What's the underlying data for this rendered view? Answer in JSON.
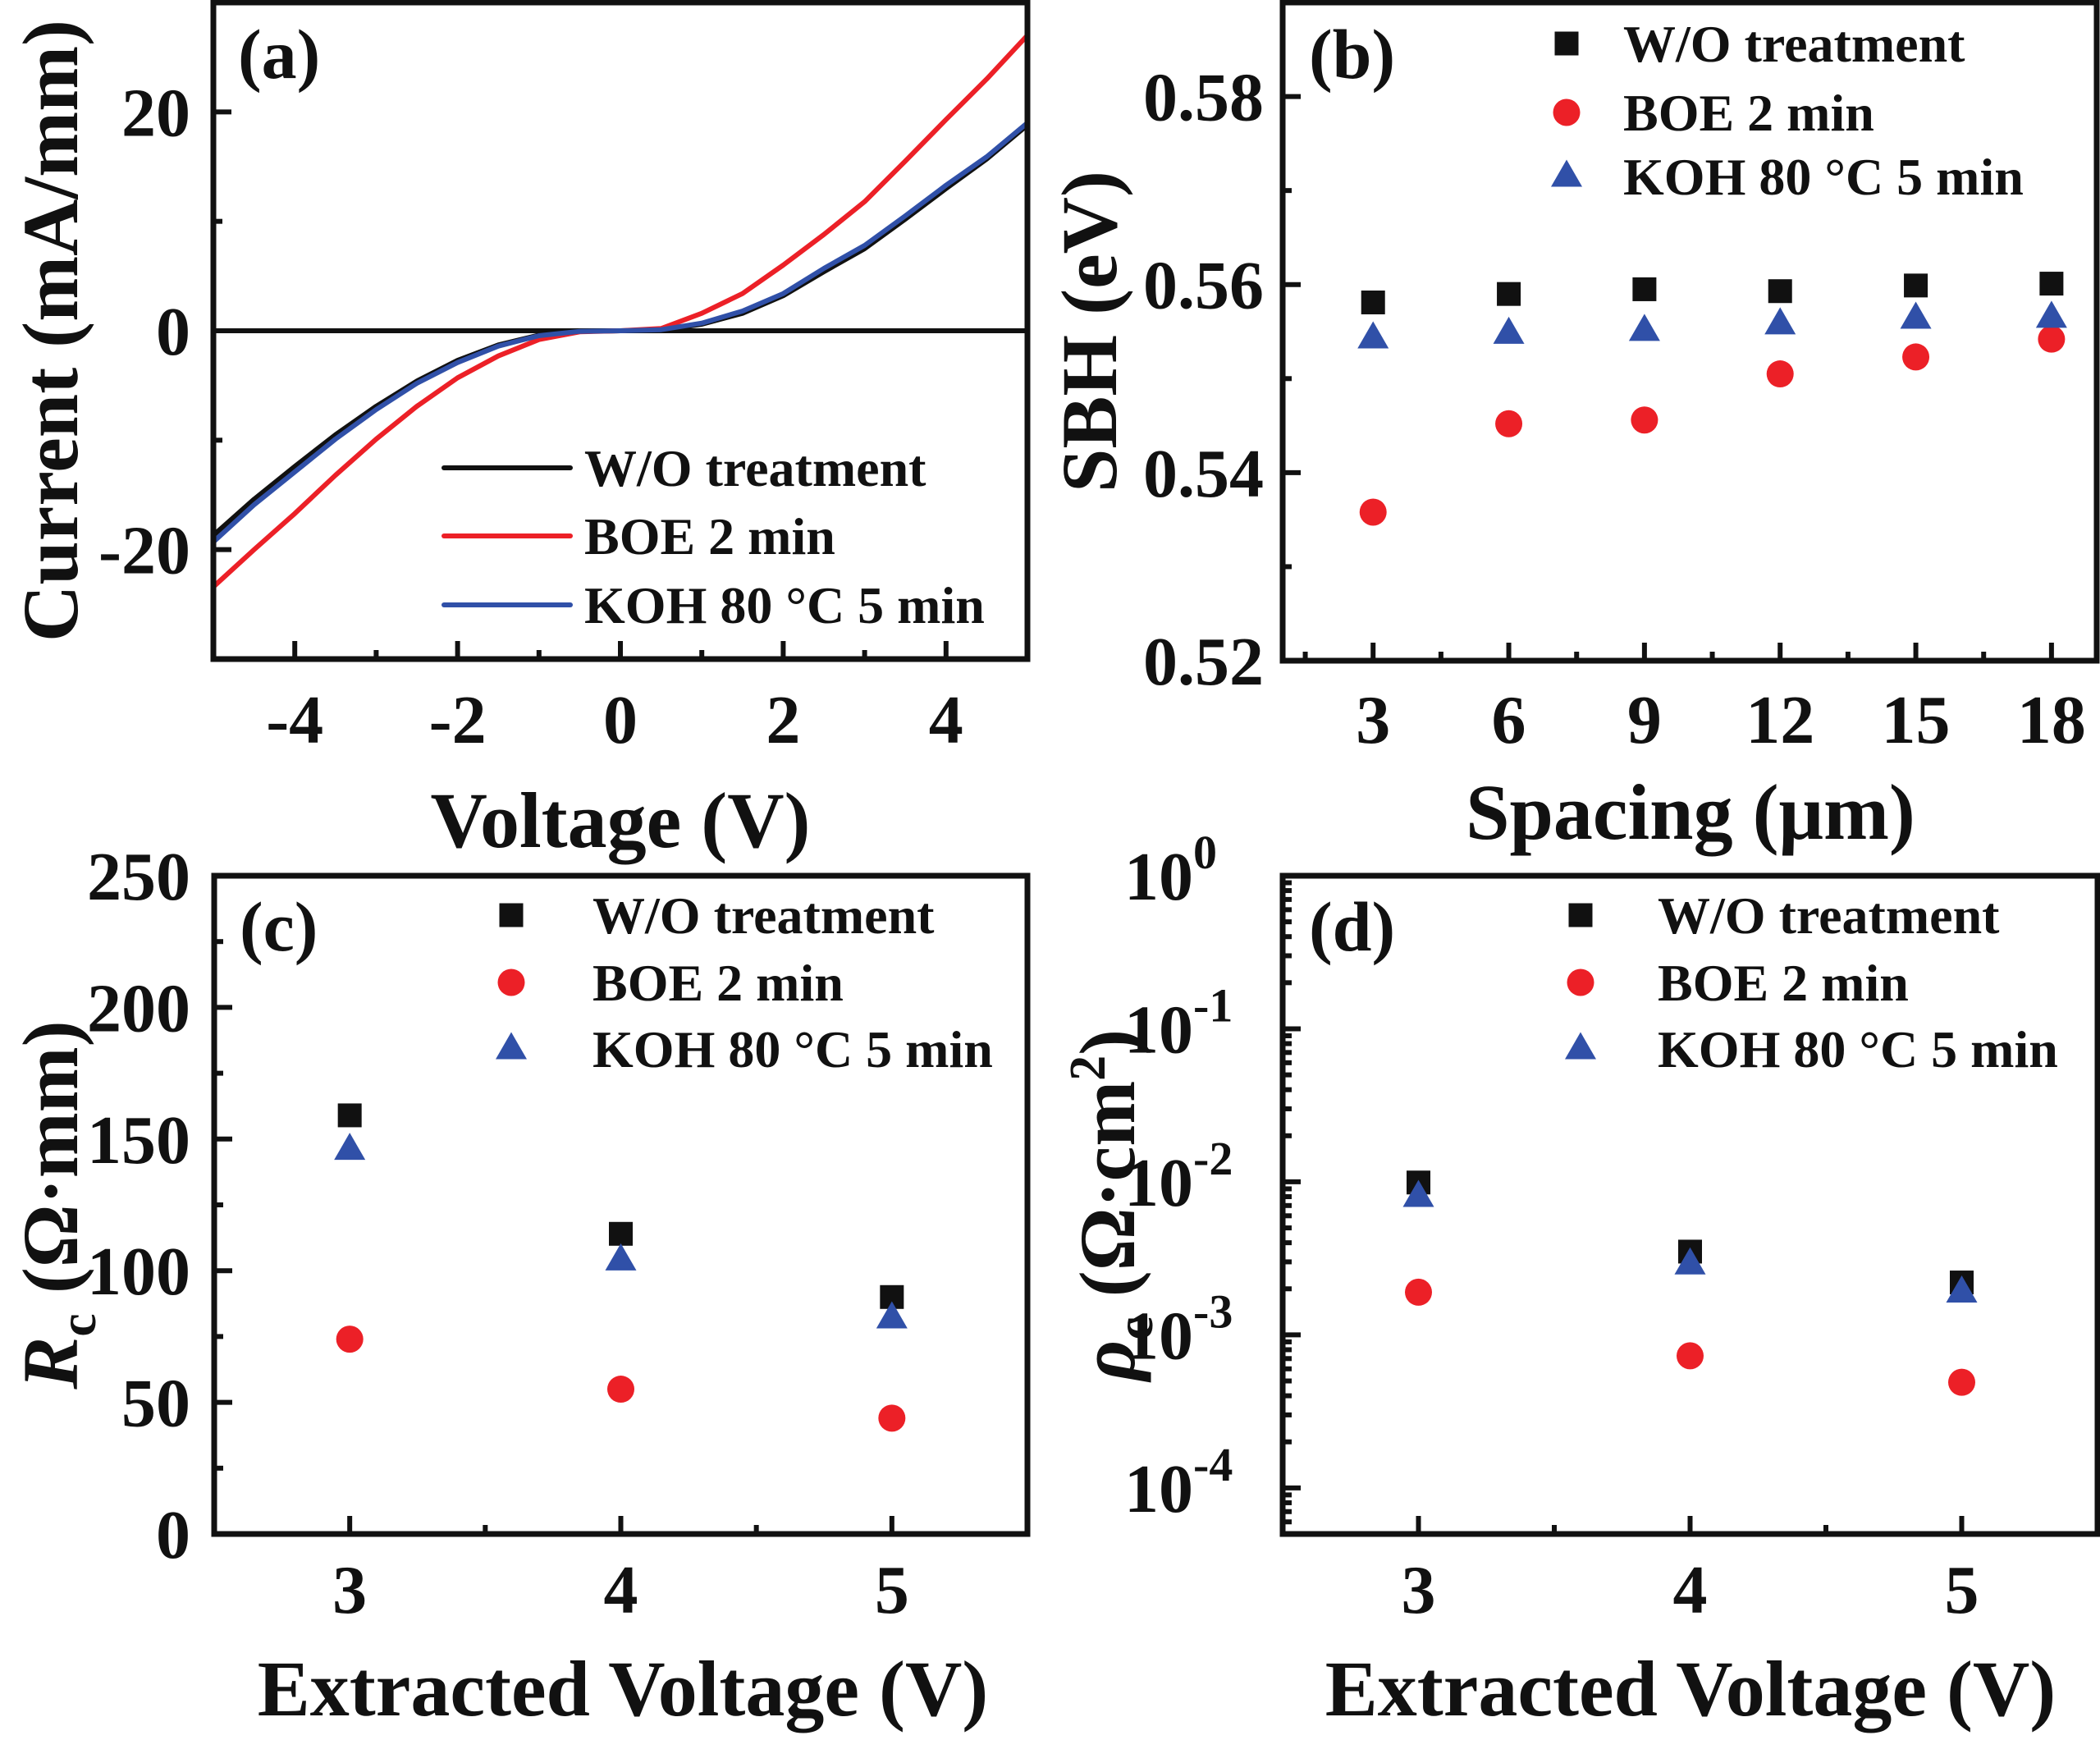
{
  "figure": {
    "colors": {
      "W/O treatment": "#111111",
      "BOE 2 min": "#ec2027",
      "KOH 80 °C 5 min": "#3050a8"
    }
  },
  "chart_data": [
    {
      "id": "a",
      "panel_label": "(a)",
      "type": "line",
      "title": "",
      "xlabel": "Voltage (V)",
      "ylabel": "Current (mA/mm)",
      "xlim": [
        -5,
        5
      ],
      "ylim": [
        -30,
        30
      ],
      "xticks": [
        -4,
        -2,
        0,
        2,
        4
      ],
      "xtick_labels": [
        "-4",
        "-2",
        "0",
        "2",
        "4"
      ],
      "xminor": [
        -3,
        -1,
        1,
        3
      ],
      "yticks": [
        -20,
        0,
        20
      ],
      "ytick_labels": [
        "-20",
        "0",
        "20"
      ],
      "yminor": [
        -10,
        10
      ],
      "zero_line": true,
      "grid": false,
      "legend_position": "bottom-right",
      "legend": [
        "W/O treatment",
        "BOE 2 min",
        "KOH 80 °C 5 min"
      ],
      "x": [
        -5,
        -4.5,
        -4,
        -3.5,
        -3,
        -2.5,
        -2,
        -1.5,
        -1,
        -0.5,
        0,
        0.5,
        1,
        1.5,
        2,
        2.5,
        3,
        3.5,
        4,
        4.5,
        5
      ],
      "series": [
        {
          "name": "W/O treatment",
          "values": [
            -18.7,
            -15.4,
            -12.4,
            -9.5,
            -6.9,
            -4.6,
            -2.7,
            -1.3,
            -0.4,
            -0.05,
            0,
            0.05,
            0.6,
            1.6,
            3.2,
            5.4,
            7.5,
            10.2,
            13.0,
            15.7,
            18.8
          ]
        },
        {
          "name": "BOE 2 min",
          "values": [
            -23.4,
            -20.0,
            -16.7,
            -13.2,
            -9.9,
            -6.9,
            -4.3,
            -2.3,
            -0.8,
            -0.1,
            0,
            0.2,
            1.6,
            3.4,
            6.0,
            8.8,
            11.8,
            15.5,
            19.3,
            23.0,
            27.0
          ]
        },
        {
          "name": "KOH 80 °C 5 min",
          "values": [
            -19.3,
            -15.9,
            -12.9,
            -9.9,
            -7.2,
            -4.8,
            -2.9,
            -1.4,
            -0.45,
            -0.05,
            0,
            0.1,
            0.7,
            1.8,
            3.4,
            5.7,
            7.8,
            10.5,
            13.3,
            15.9,
            19.0
          ]
        }
      ]
    },
    {
      "id": "b",
      "panel_label": "(b)",
      "type": "scatter",
      "title": "",
      "xlabel": "Spacing (μm)",
      "ylabel": "SBH (eV)",
      "xlim": [
        1,
        19
      ],
      "ylim": [
        0.52,
        0.59
      ],
      "xticks": [
        3,
        6,
        9,
        12,
        15,
        18
      ],
      "xtick_labels": [
        "3",
        "6",
        "9",
        "12",
        "15",
        "18"
      ],
      "xminor": [
        1.5,
        4.5,
        7.5,
        10.5,
        13.5,
        16.5
      ],
      "yticks": [
        0.52,
        0.54,
        0.56,
        0.58
      ],
      "ytick_labels": [
        "0.52",
        "0.54",
        "0.56",
        "0.58"
      ],
      "yminor": [
        0.53,
        0.55,
        0.57
      ],
      "grid": false,
      "legend_position": "top-right",
      "legend": [
        "W/O treatment",
        "BOE 2 min",
        "KOH 80 °C 5 min"
      ],
      "x": [
        3,
        6,
        9,
        12,
        15,
        18
      ],
      "series": [
        {
          "name": "W/O treatment",
          "marker": "square",
          "values": [
            0.5581,
            0.559,
            0.5595,
            0.5593,
            0.5599,
            0.5601
          ]
        },
        {
          "name": "BOE 2 min",
          "marker": "circle",
          "values": [
            0.5358,
            0.5452,
            0.5456,
            0.5505,
            0.5523,
            0.5542
          ]
        },
        {
          "name": "KOH 80 °C 5 min",
          "marker": "triangle",
          "values": [
            0.5543,
            0.5548,
            0.5551,
            0.5558,
            0.5564,
            0.5565
          ]
        }
      ]
    },
    {
      "id": "c",
      "panel_label": "(c)",
      "type": "scatter",
      "title": "",
      "xlabel": "Extracted Voltage (V)",
      "ylabel": "R_c (Ω·mm)",
      "ylabel_main": "R",
      "ylabel_sub": "c",
      "ylabel_unit": " (Ω·mm)",
      "xlim": [
        2.5,
        5.5
      ],
      "ylim": [
        0,
        250
      ],
      "xticks": [
        3,
        4,
        5
      ],
      "xtick_labels": [
        "3",
        "4",
        "5"
      ],
      "xminor": [
        3.5,
        4.5
      ],
      "yticks": [
        0,
        50,
        100,
        150,
        200,
        250
      ],
      "ytick_labels": [
        "0",
        "50",
        "100",
        "150",
        "200",
        "250"
      ],
      "yminor": [
        25,
        75,
        125,
        175,
        225
      ],
      "grid": false,
      "legend_position": "top-right",
      "legend": [
        "W/O treatment",
        "BOE 2 min",
        "KOH 80 °C 5 min"
      ],
      "x": [
        3,
        4,
        5
      ],
      "series": [
        {
          "name": "W/O treatment",
          "marker": "square",
          "values": [
            159,
            114,
            90
          ]
        },
        {
          "name": "BOE 2 min",
          "marker": "circle",
          "values": [
            74,
            55,
            44
          ]
        },
        {
          "name": "KOH 80 °C 5 min",
          "marker": "triangle",
          "values": [
            146,
            104,
            82
          ]
        }
      ]
    },
    {
      "id": "d",
      "panel_label": "(d)",
      "type": "scatter",
      "title": "",
      "xlabel": "Extracted Voltage (V)",
      "ylabel": "ρ_c (Ω·cm²)",
      "ylabel_main": "ρ",
      "ylabel_sub": "c",
      "ylabel_unit": " (Ω·cm",
      "ylabel_sup": "2",
      "ylabel_close": ")",
      "yscale": "log",
      "xlim": [
        2.5,
        5.5
      ],
      "ylim": [
        5e-05,
        1
      ],
      "xticks": [
        3,
        4,
        5
      ],
      "xtick_labels": [
        "3",
        "4",
        "5"
      ],
      "xminor": [
        3.5,
        4.5
      ],
      "yticks": [
        0.0001,
        0.001,
        0.01,
        0.1,
        1
      ],
      "ytick_labels": [
        {
          "base": "10",
          "exp": "-4"
        },
        {
          "base": "10",
          "exp": "-3"
        },
        {
          "base": "10",
          "exp": "-2"
        },
        {
          "base": "10",
          "exp": "-1"
        },
        {
          "base": "10",
          "exp": "0"
        }
      ],
      "grid": false,
      "legend_position": "top-right",
      "legend": [
        "W/O treatment",
        "BOE 2 min",
        "KOH 80 °C 5 min"
      ],
      "x": [
        3,
        4,
        5
      ],
      "series": [
        {
          "name": "W/O treatment",
          "marker": "square",
          "values": [
            0.0099,
            0.0035,
            0.0022
          ]
        },
        {
          "name": "BOE 2 min",
          "marker": "circle",
          "values": [
            0.0019,
            0.00073,
            0.00049
          ]
        },
        {
          "name": "KOH 80 °C 5 min",
          "marker": "triangle",
          "values": [
            0.008,
            0.0029,
            0.0019
          ]
        }
      ]
    }
  ]
}
